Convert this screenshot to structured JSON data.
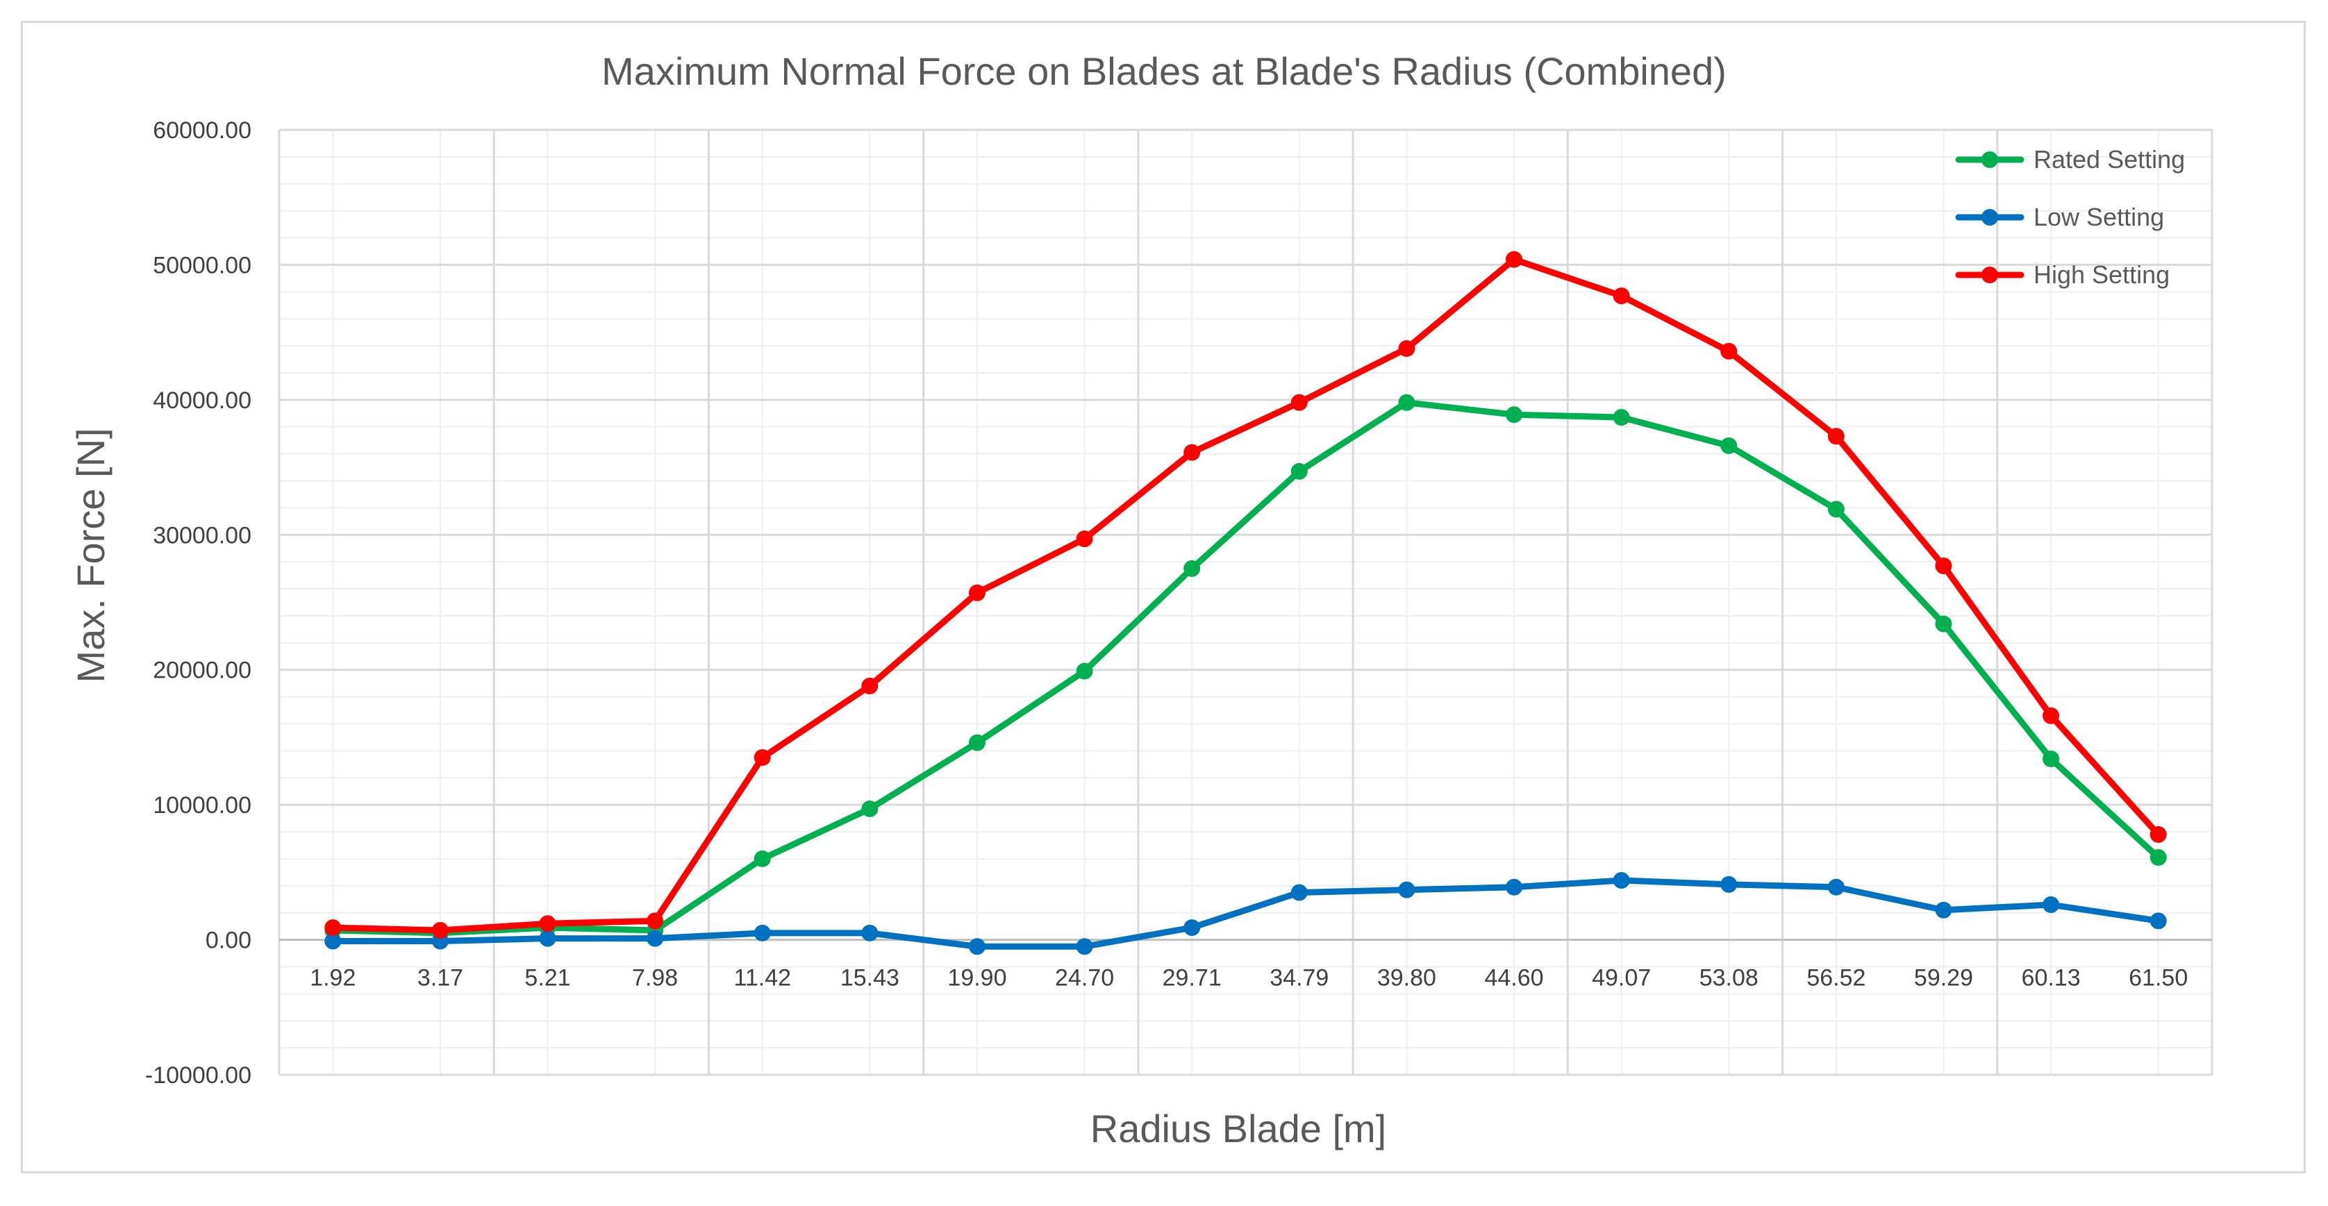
{
  "chart_data": {
    "type": "line",
    "title": "Maximum Normal Force on Blades at Blade's Radius (Combined)",
    "xlabel": "Radius Blade [m]",
    "ylabel": "Max. Force [N]",
    "categories": [
      "1.92",
      "3.17",
      "5.21",
      "7.98",
      "11.42",
      "15.43",
      "19.90",
      "24.70",
      "29.71",
      "34.79",
      "39.80",
      "44.60",
      "49.07",
      "53.08",
      "56.52",
      "59.29",
      "60.13",
      "61.50"
    ],
    "ylim": [
      -10000,
      60000
    ],
    "yticks": [
      -10000,
      0,
      10000,
      20000,
      30000,
      40000,
      50000,
      60000
    ],
    "ytick_labels": [
      "-10000.00",
      "0.00",
      "10000.00",
      "20000.00",
      "30000.00",
      "40000.00",
      "50000.00",
      "60000.00"
    ],
    "grid": true,
    "legend_position": "top-right",
    "series": [
      {
        "name": "Rated Setting",
        "color": "#00b050",
        "values": [
          700,
          500,
          900,
          700,
          6000,
          9700,
          14600,
          19900,
          27500,
          34700,
          39800,
          38900,
          38700,
          36600,
          31900,
          23400,
          13400,
          6100
        ]
      },
      {
        "name": "Low Setting",
        "color": "#0070c0",
        "values": [
          -100,
          -100,
          100,
          100,
          500,
          500,
          -500,
          -500,
          900,
          3500,
          3700,
          3900,
          4400,
          4100,
          3900,
          2200,
          2600,
          1400
        ]
      },
      {
        "name": "High Setting",
        "color": "#ff0000",
        "values": [
          900,
          700,
          1200,
          1400,
          13500,
          18800,
          25700,
          29700,
          36100,
          39800,
          43800,
          50400,
          47700,
          43600,
          37300,
          27700,
          16600,
          7800
        ]
      }
    ]
  }
}
